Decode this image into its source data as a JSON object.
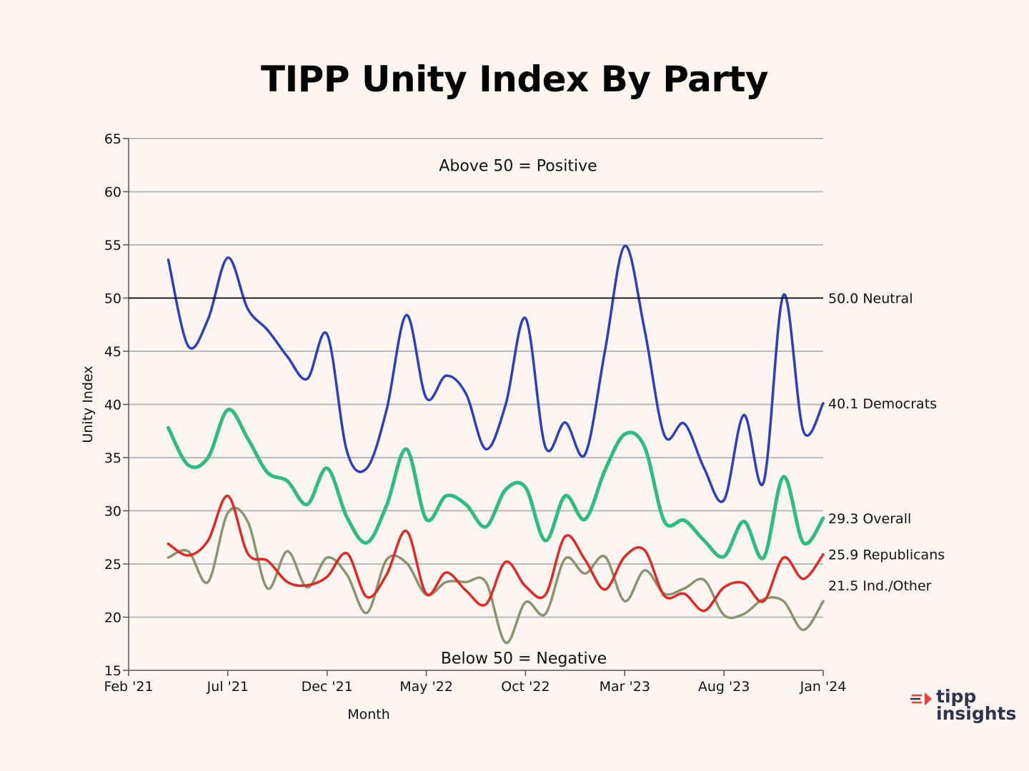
{
  "title": "TIPP Unity Index By Party",
  "logo": {
    "line1": "tipp",
    "line2": "insights"
  },
  "colors": {
    "democrats": "#2b3fbf",
    "overall": "#2dbd7e",
    "republicans": "#e02828",
    "independents": "#8a9470",
    "grid": "#b9b9b9",
    "neutral": "#000000",
    "logo_red": "#e8403a",
    "logo_navy": "#2e3350"
  },
  "chart_data": {
    "type": "line",
    "title": "TIPP Unity Index By Party",
    "xlabel": "Month",
    "ylabel": "Unity Index",
    "ylim": [
      15,
      65
    ],
    "yticks": [
      15,
      20,
      25,
      30,
      35,
      40,
      45,
      50,
      55,
      60,
      65
    ],
    "xlim": [
      0,
      35
    ],
    "x_tick_positions": [
      0,
      5,
      10,
      15,
      20,
      25,
      30,
      35
    ],
    "x_tick_labels": [
      "Feb '21",
      "Jul '21",
      "Dec '21",
      "May '22",
      "Oct '22",
      "Mar '23",
      "Aug '23",
      "Jan '24"
    ],
    "grid": true,
    "annotations": {
      "above": "Above 50  = Positive",
      "below": "Below 50  = Negative"
    },
    "reference_line": {
      "value": 50,
      "label": "50.0 Neutral"
    },
    "x": [
      2,
      3,
      4,
      5,
      6,
      7,
      8,
      9,
      10,
      11,
      12,
      13,
      14,
      15,
      16,
      17,
      18,
      19,
      20,
      21,
      22,
      23,
      24,
      25,
      26,
      27,
      28,
      29,
      30,
      31,
      32,
      33,
      34,
      35
    ],
    "series": [
      {
        "name": "Democrats",
        "end_label": "40.1 Democrats",
        "color_key": "democrats",
        "values": [
          53.6,
          45.5,
          48.0,
          53.8,
          49.0,
          47.0,
          44.5,
          42.4,
          46.6,
          35.6,
          34.0,
          39.5,
          48.4,
          40.6,
          42.7,
          41.0,
          35.8,
          40.0,
          48.1,
          36.0,
          38.3,
          35.3,
          45.0,
          54.9,
          47.0,
          37.1,
          38.2,
          34.0,
          31.0,
          39.0,
          32.7,
          50.3,
          37.5,
          40.1
        ]
      },
      {
        "name": "Overall",
        "end_label": "29.3 Overall",
        "color_key": "overall",
        "values": [
          37.8,
          34.3,
          35.0,
          39.5,
          36.8,
          33.6,
          32.8,
          30.6,
          34.0,
          29.4,
          27.0,
          30.5,
          35.8,
          29.2,
          31.4,
          30.6,
          28.5,
          32.0,
          32.2,
          27.2,
          31.4,
          29.2,
          33.8,
          37.2,
          36.0,
          29.0,
          29.1,
          27.2,
          25.7,
          29.0,
          25.6,
          33.2,
          27.0,
          29.3
        ]
      },
      {
        "name": "Republicans",
        "end_label": "25.9 Republicans",
        "color_key": "republicans",
        "values": [
          26.9,
          25.8,
          27.2,
          31.4,
          26.0,
          25.3,
          23.3,
          23.0,
          23.8,
          26.0,
          21.9,
          24.0,
          28.1,
          22.2,
          24.2,
          22.5,
          21.2,
          25.2,
          22.9,
          22.1,
          27.6,
          25.4,
          22.6,
          25.7,
          26.3,
          22.0,
          22.2,
          20.6,
          22.8,
          23.2,
          21.5,
          25.6,
          23.6,
          25.9
        ]
      },
      {
        "name": "Ind./Other",
        "end_label": "21.5 Ind./Other",
        "color_key": "independents",
        "values": [
          25.6,
          26.2,
          23.3,
          29.8,
          29.0,
          22.7,
          26.2,
          22.8,
          25.6,
          24.0,
          20.4,
          25.4,
          25.1,
          22.1,
          23.3,
          23.3,
          23.3,
          17.6,
          21.4,
          20.3,
          25.5,
          24.1,
          25.7,
          21.5,
          24.4,
          22.2,
          22.7,
          23.5,
          20.2,
          20.3,
          21.7,
          21.5,
          18.8,
          21.5
        ]
      }
    ]
  }
}
